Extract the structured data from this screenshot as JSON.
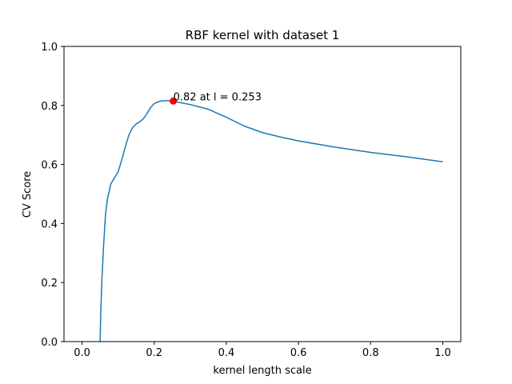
{
  "chart_data": {
    "type": "line",
    "title": "RBF kernel with dataset 1",
    "xlabel": "kernel length scale",
    "ylabel": "CV Score",
    "xlim": [
      -0.05,
      1.05
    ],
    "ylim": [
      0.0,
      1.0
    ],
    "xticks": [
      0.0,
      0.2,
      0.4,
      0.6,
      0.8,
      1.0
    ],
    "xtick_labels": [
      "0.0",
      "0.2",
      "0.4",
      "0.6",
      "0.8",
      "1.0"
    ],
    "yticks": [
      0.0,
      0.2,
      0.4,
      0.6,
      0.8,
      1.0
    ],
    "ytick_labels": [
      "0.0",
      "0.2",
      "0.4",
      "0.6",
      "0.8",
      "1.0"
    ],
    "grid": false,
    "legend": "none",
    "series": [
      {
        "color": "#1f77b4",
        "x": [
          0.05,
          0.052,
          0.055,
          0.06,
          0.065,
          0.07,
          0.08,
          0.09,
          0.1,
          0.11,
          0.12,
          0.13,
          0.14,
          0.15,
          0.16,
          0.17,
          0.18,
          0.19,
          0.2,
          0.21,
          0.22,
          0.23,
          0.24,
          0.253,
          0.27,
          0.3,
          0.35,
          0.4,
          0.45,
          0.5,
          0.55,
          0.6,
          0.7,
          0.8,
          0.9,
          1.0
        ],
        "y": [
          0.0,
          0.1,
          0.21,
          0.33,
          0.43,
          0.48,
          0.535,
          0.555,
          0.575,
          0.615,
          0.66,
          0.7,
          0.725,
          0.737,
          0.745,
          0.755,
          0.772,
          0.793,
          0.806,
          0.812,
          0.815,
          0.816,
          0.816,
          0.815,
          0.81,
          0.803,
          0.787,
          0.76,
          0.73,
          0.708,
          0.693,
          0.68,
          0.659,
          0.641,
          0.626,
          0.609
        ]
      }
    ],
    "highlight_point": {
      "x": 0.253,
      "y": 0.815,
      "color": "#ff0000"
    },
    "annotation": "0.82 at l = 0.253"
  }
}
